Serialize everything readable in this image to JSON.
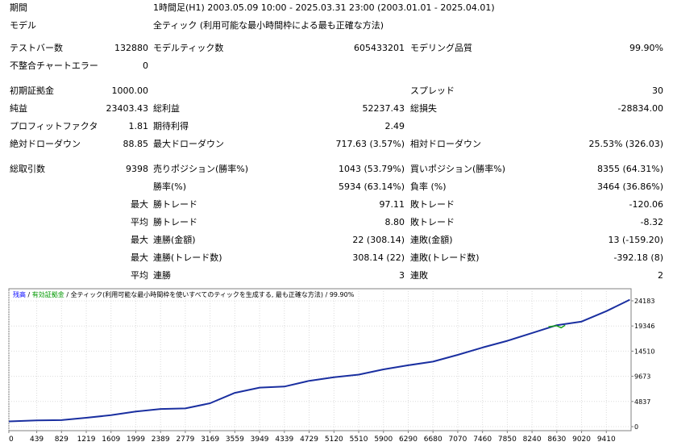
{
  "report": {
    "period_label": "期間",
    "period_value": "1時間足(H1) 2003.05.09 10:00 - 2025.03.31 23:00 (2003.01.01 - 2025.04.01)",
    "model_label": "モデル",
    "model_value": "全ティック (利用可能な最小時間枠による最も正確な方法)",
    "bars_label": "テストバー数",
    "bars_value": "132880",
    "ticks_label": "モデルティック数",
    "ticks_value": "605433201",
    "quality_label": "モデリング品質",
    "quality_value": "99.90%",
    "mismatch_label": "不整合チャートエラー",
    "mismatch_value": "0",
    "deposit_label": "初期証拠金",
    "deposit_value": "1000.00",
    "spread_label": "スプレッド",
    "spread_value": "30",
    "net_label": "純益",
    "net_value": "23403.43",
    "gross_profit_label": "総利益",
    "gross_profit_value": "52237.43",
    "gross_loss_label": "総損失",
    "gross_loss_value": "-28834.00",
    "pf_label": "プロフィットファクタ",
    "pf_value": "1.81",
    "expected_label": "期待利得",
    "expected_value": "2.49",
    "abs_dd_label": "絶対ドローダウン",
    "abs_dd_value": "88.85",
    "max_dd_label": "最大ドローダウン",
    "max_dd_value": "717.63 (3.57%)",
    "rel_dd_label": "相対ドローダウン",
    "rel_dd_value": "25.53% (326.03)",
    "total_trades_label": "総取引数",
    "total_trades_value": "9398",
    "short_label": "売りポジション(勝率%)",
    "short_value": "1043 (53.79%)",
    "long_label": "買いポジション(勝率%)",
    "long_value": "8355 (64.31%)",
    "win_rate_label": "勝率(%)",
    "win_rate_value": "5934 (63.14%)",
    "loss_rate_label": "負率 (%)",
    "loss_rate_value": "3464 (36.86%)",
    "max_word": "最大",
    "avg_word": "平均",
    "largest_win_label": "勝トレード",
    "largest_win_value": "97.11",
    "largest_loss_label": "敗トレード",
    "largest_loss_value": "-120.06",
    "avg_win_label": "勝トレード",
    "avg_win_value": "8.80",
    "avg_loss_label": "敗トレード",
    "avg_loss_value": "-8.32",
    "max_cons_wins_label": "連勝(金額)",
    "max_cons_wins_value": "22 (308.14)",
    "max_cons_losses_label": "連敗(金額)",
    "max_cons_losses_value": "13 (-159.20)",
    "max_cons_profit_label": "連勝(トレード数)",
    "max_cons_profit_value": "308.14 (22)",
    "max_cons_loss_label": "連敗(トレード数)",
    "max_cons_loss_value": "-392.18 (8)",
    "avg_cons_wins_label": "連勝",
    "avg_cons_wins_value": "3",
    "avg_cons_losses_label": "連敗",
    "avg_cons_losses_value": "2"
  },
  "chart_header": {
    "balance": "残高",
    "sep1": " / ",
    "equity": "有効証拠金",
    "sep2": " / ",
    "desc": "全ティック(利用可能な最小時間枠を使いすべてのティックを生成する, 最も正確な方法) / 99.90%"
  },
  "colors": {
    "balance_line": "#1a2fa0",
    "equity_line": "#19a019",
    "balance_label": "#0000ff",
    "equity_label": "#009900",
    "grid": "#dcdcdc",
    "frame": "#808080"
  },
  "chart_data": {
    "type": "line",
    "title": "",
    "x_ticks": [
      "0",
      "439",
      "829",
      "1219",
      "1609",
      "1999",
      "2389",
      "2779",
      "3169",
      "3559",
      "3949",
      "4339",
      "4729",
      "5120",
      "5510",
      "5900",
      "6290",
      "6680",
      "7070",
      "7460",
      "7850",
      "8240",
      "8630",
      "9020",
      "9410"
    ],
    "y_ticks": [
      "24183",
      "19346",
      "14510",
      "9673",
      "4837",
      "0"
    ],
    "xlim": [
      0,
      9800
    ],
    "ylim": [
      0,
      24183
    ],
    "series": [
      {
        "name": "残高",
        "x": [
          0,
          439,
          829,
          1219,
          1609,
          1999,
          2389,
          2779,
          3169,
          3559,
          3949,
          4339,
          4729,
          5120,
          5510,
          5900,
          6290,
          6680,
          7070,
          7460,
          7850,
          8240,
          8630,
          9020,
          9410,
          9780
        ],
        "values": [
          1000,
          1200,
          1250,
          1700,
          2200,
          2900,
          3400,
          3500,
          4500,
          6500,
          7500,
          7700,
          8800,
          9500,
          10000,
          11000,
          11800,
          12500,
          13800,
          15200,
          16500,
          18000,
          19500,
          20200,
          22200,
          24400
        ]
      },
      {
        "name": "有効証拠金",
        "x": [
          8500,
          8630,
          8700,
          8760
        ],
        "values": [
          19200,
          19400,
          19000,
          19500
        ]
      }
    ]
  }
}
